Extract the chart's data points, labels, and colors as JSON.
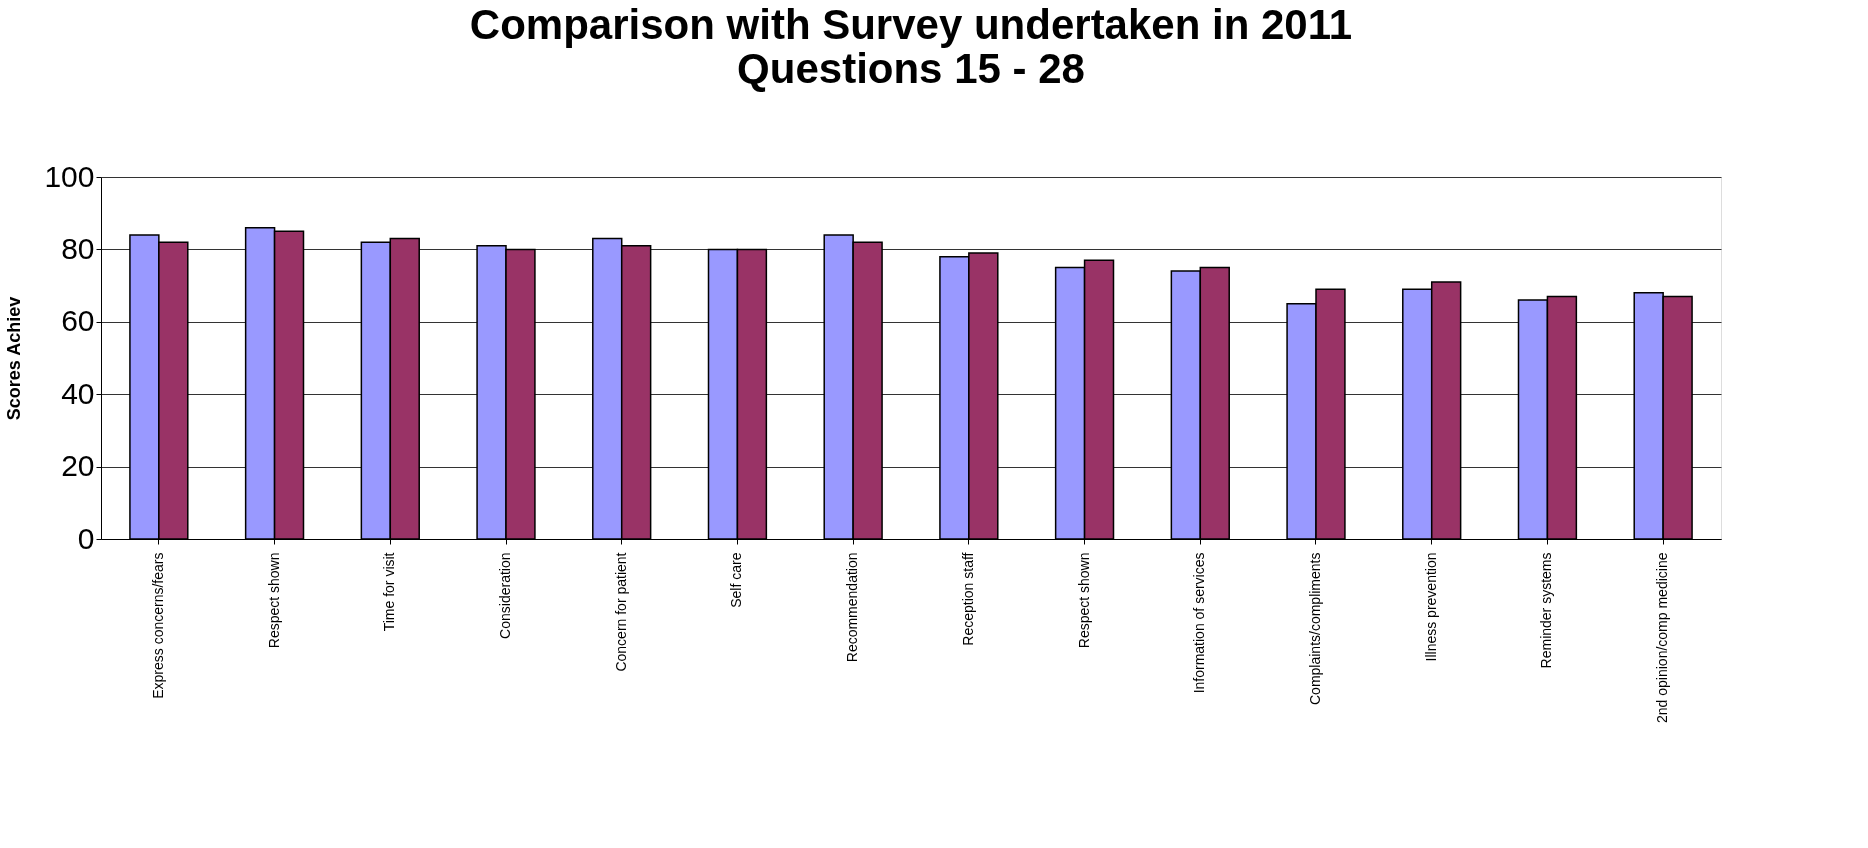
{
  "chart_data": {
    "type": "bar",
    "title": [
      "Comparison with Survey undertaken in 2011",
      "Questions 15 - 28"
    ],
    "ylabel": "Scores Achiev",
    "categories": [
      "Express concerns/fears",
      "Respect shown",
      "Time for visit",
      "Consideration",
      "Concern for patient",
      "Self care",
      "Recommendation",
      "Reception staff",
      "Respect shown",
      "Information of services",
      "Complaints/compliments",
      "Illness prevention",
      "Reminder systems",
      "2nd opinion/comp medicine"
    ],
    "series": [
      {
        "color": "#9999ff",
        "values": [
          84,
          86,
          82,
          81,
          83,
          80,
          84,
          78,
          75,
          74,
          65,
          69,
          66,
          68
        ]
      },
      {
        "color": "#993366",
        "values": [
          82,
          85,
          83,
          80,
          81,
          80,
          82,
          79,
          77,
          75,
          69,
          71,
          67,
          67
        ]
      }
    ],
    "ylim": [
      0,
      100
    ],
    "yticks": [
      0,
      20,
      40,
      60,
      80,
      100
    ],
    "grid": "y",
    "legend": false
  }
}
